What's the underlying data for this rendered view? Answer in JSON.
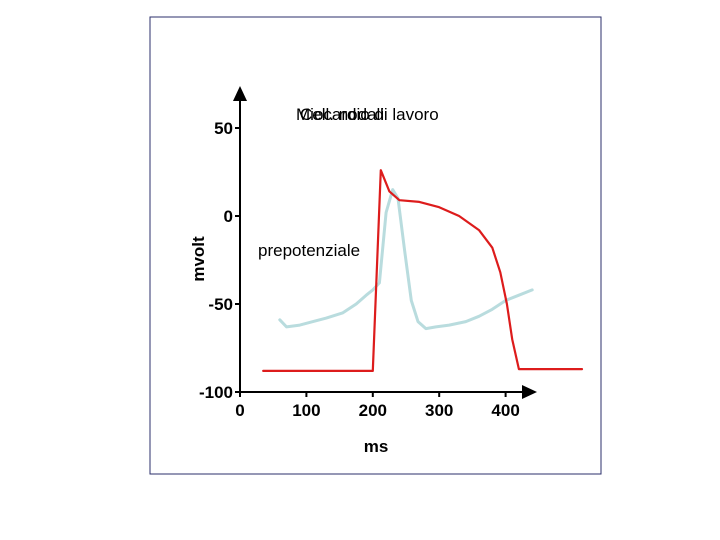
{
  "chart_data": {
    "type": "line",
    "title": "",
    "xlabel": "ms",
    "ylabel": "mvolt",
    "xlim": [
      0,
      450
    ],
    "ylim": [
      -100,
      50
    ],
    "x_ticks": [
      0,
      100,
      200,
      300,
      400
    ],
    "x_tick_labels": [
      "0",
      "100",
      "200",
      "300",
      "400"
    ],
    "y_ticks": [
      50,
      0,
      -50,
      -100
    ],
    "y_tick_labels": [
      "50",
      "0",
      "-50",
      "-100"
    ],
    "grid": false,
    "annotations": [
      {
        "text": "Miocardio di lavoro",
        "x": 90,
        "y": 54
      },
      {
        "text": "Cell. nodali",
        "x": 95,
        "y": 54
      },
      {
        "text": "prepotenziale",
        "x": 30,
        "y": -21
      }
    ],
    "series": [
      {
        "color": "#dd1c1c",
        "x": [
          35,
          200,
          212,
          225,
          240,
          270,
          300,
          330,
          360,
          380,
          392,
          402,
          410,
          420,
          515
        ],
        "y": [
          -88,
          -88,
          26,
          14,
          9,
          8,
          5,
          0,
          -8,
          -18,
          -32,
          -50,
          -70,
          -87,
          -87
        ]
      },
      {
        "color": "#b9dcde",
        "x": [
          60,
          70,
          90,
          110,
          130,
          155,
          175,
          190,
          200,
          210,
          220,
          230,
          238,
          248,
          258,
          268,
          280,
          295,
          315,
          340,
          360,
          380,
          400,
          420,
          440
        ],
        "y": [
          -59,
          -63,
          -62,
          -60,
          -58,
          -55,
          -50,
          -45,
          -42,
          -38,
          2,
          15,
          10,
          -20,
          -48,
          -60,
          -64,
          -63,
          -62,
          -60,
          -57,
          -53,
          -48,
          -45,
          -42
        ]
      }
    ]
  }
}
